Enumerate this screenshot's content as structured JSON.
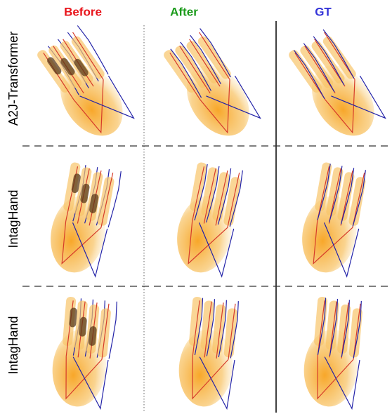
{
  "header": {
    "columns": [
      "Before",
      "After",
      "GT"
    ]
  },
  "rows": [
    {
      "label": "A2J-Transformer"
    },
    {
      "label": "IntagHand"
    },
    {
      "label": "IntagHand"
    }
  ]
}
